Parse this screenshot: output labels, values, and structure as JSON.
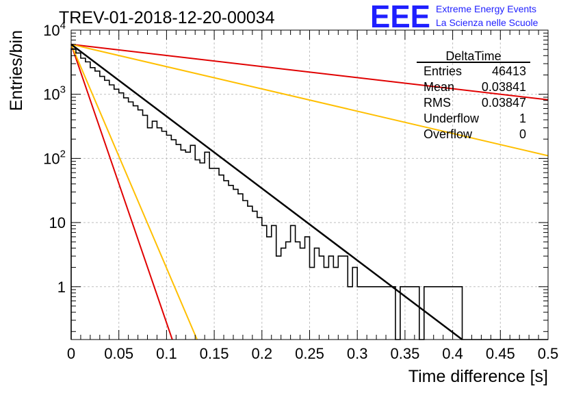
{
  "header": {
    "title": "TREV-01-2018-12-20-00034",
    "logo_text": "EEE",
    "logo_line1": "Extreme Energy Events",
    "logo_line2": "La Scienza nelle Scuole"
  },
  "colors": {
    "logo": "#1f1fff",
    "histogram": "#000000",
    "fit": "#000000",
    "red_lines": "#e00000",
    "orange_lines": "#ffbf00",
    "grid": "#bfbfbf"
  },
  "stats": {
    "name": "DeltaTime",
    "rows": [
      {
        "label": "Entries",
        "value": "46413"
      },
      {
        "label": "Mean",
        "value": "0.03841"
      },
      {
        "label": "RMS",
        "value": "0.03847"
      },
      {
        "label": "Underflow",
        "value": "1"
      },
      {
        "label": "Overflow",
        "value": "0"
      }
    ]
  },
  "chart_data": {
    "type": "line",
    "title": "TREV-01-2018-12-20-00034",
    "xlabel": "Time difference [s]",
    "ylabel": "Entries/bin",
    "xlim": [
      0,
      0.5
    ],
    "ylim": [
      0.15,
      10000
    ],
    "yscale": "log",
    "grid": true,
    "legend": "top-right",
    "x_ticks": [
      0,
      0.05,
      0.1,
      0.15,
      0.2,
      0.25,
      0.3,
      0.35,
      0.4,
      0.45,
      0.5
    ],
    "x_tick_labels": [
      "0",
      "0.05",
      "0.1",
      "0.15",
      "0.2",
      "0.25",
      "0.3",
      "0.35",
      "0.4",
      "0.45",
      "0.5"
    ],
    "y_ticks": [
      {
        "value": 1,
        "label": "1",
        "exp": ""
      },
      {
        "value": 10,
        "label": "10",
        "exp": ""
      },
      {
        "value": 100,
        "label": "10",
        "exp": "2"
      },
      {
        "value": 1000,
        "label": "10",
        "exp": "3"
      },
      {
        "value": 10000,
        "label": "10",
        "exp": "4"
      }
    ],
    "histogram": {
      "bin_width": 0.005,
      "x_start": 0,
      "values": [
        5100,
        4400,
        3650,
        3200,
        2600,
        2300,
        1900,
        1650,
        1400,
        1200,
        1050,
        880,
        760,
        660,
        570,
        470,
        300,
        380,
        300,
        265,
        230,
        195,
        165,
        135,
        125,
        160,
        95,
        85,
        125,
        70,
        70,
        55,
        45,
        38,
        33,
        28,
        22,
        18,
        15,
        12,
        9,
        6,
        9,
        3,
        4,
        5,
        9,
        5,
        4,
        6,
        2,
        4,
        3,
        2,
        3,
        2,
        3,
        3,
        1,
        2,
        1,
        1,
        1,
        1,
        1,
        1,
        1,
        1,
        0,
        1,
        1,
        1,
        1,
        0,
        1,
        1,
        1,
        1,
        1,
        1,
        1,
        1,
        0,
        0,
        0,
        0,
        0,
        0,
        0,
        0,
        0,
        0,
        0,
        0,
        0,
        0,
        0,
        0,
        0,
        0
      ]
    },
    "series": [
      {
        "color": "black",
        "style": "fit",
        "x": [
          0,
          0.41
        ],
        "y": [
          6000,
          0.148
        ]
      },
      {
        "color": "red",
        "x": [
          0,
          0.5
        ],
        "y": [
          6000,
          820
        ]
      },
      {
        "color": "orange",
        "x": [
          0,
          0.5
        ],
        "y": [
          6000,
          110
        ]
      },
      {
        "color": "red",
        "x": [
          0,
          0.106
        ],
        "y": [
          6000,
          0.15
        ]
      },
      {
        "color": "orange",
        "x": [
          0,
          0.132
        ],
        "y": [
          6000,
          0.15
        ]
      }
    ]
  }
}
